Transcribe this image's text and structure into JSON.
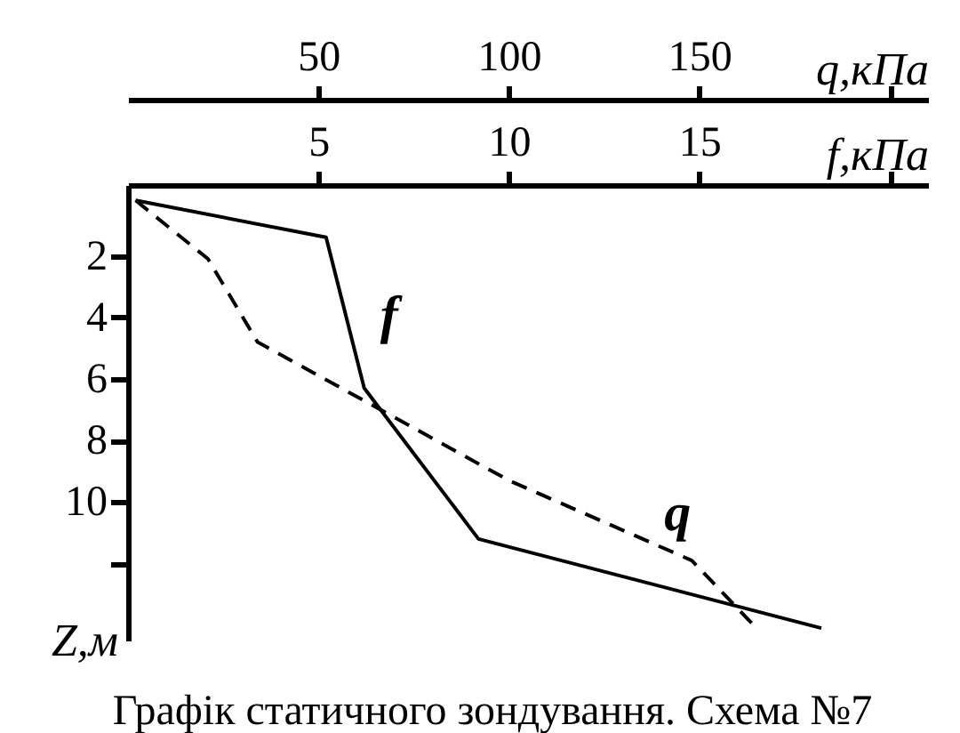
{
  "chart_data": {
    "type": "line",
    "xlabel": "f,кПа",
    "x2label": "q,кПа",
    "ylabel": "Z,м",
    "annotations": [
      "Графік статичного зондування. Схема №7"
    ],
    "xlim": [
      0,
      21
    ],
    "xticks": [
      5,
      10,
      15,
      {
        "value": 20,
        "label": null
      }
    ],
    "x2lim": [
      0,
      210
    ],
    "x2ticks": [
      50,
      100,
      150,
      {
        "value": 200,
        "label": null
      }
    ],
    "ylim": [
      14.5,
      -0.3
    ],
    "yticks": [
      2,
      4,
      6,
      8,
      10,
      {
        "value": 12,
        "label": null
      }
    ],
    "grid": false,
    "legend": false,
    "marker": "none",
    "series": [
      {
        "name": "f",
        "color": "#000000",
        "line_style": "solid",
        "x": [
          0.2,
          5.2,
          6.2,
          9.2,
          18.2
        ],
        "values": [
          0.2,
          1.4,
          6.3,
          11.2,
          14.1
        ]
      },
      {
        "name": "q",
        "color": "#000000",
        "line_style": "dashed",
        "axis": "x2",
        "x": [
          2,
          21,
          34,
          100,
          148,
          165
        ],
        "values": [
          0.2,
          2.1,
          4.8,
          9.3,
          11.9,
          14.1
        ]
      }
    ]
  }
}
